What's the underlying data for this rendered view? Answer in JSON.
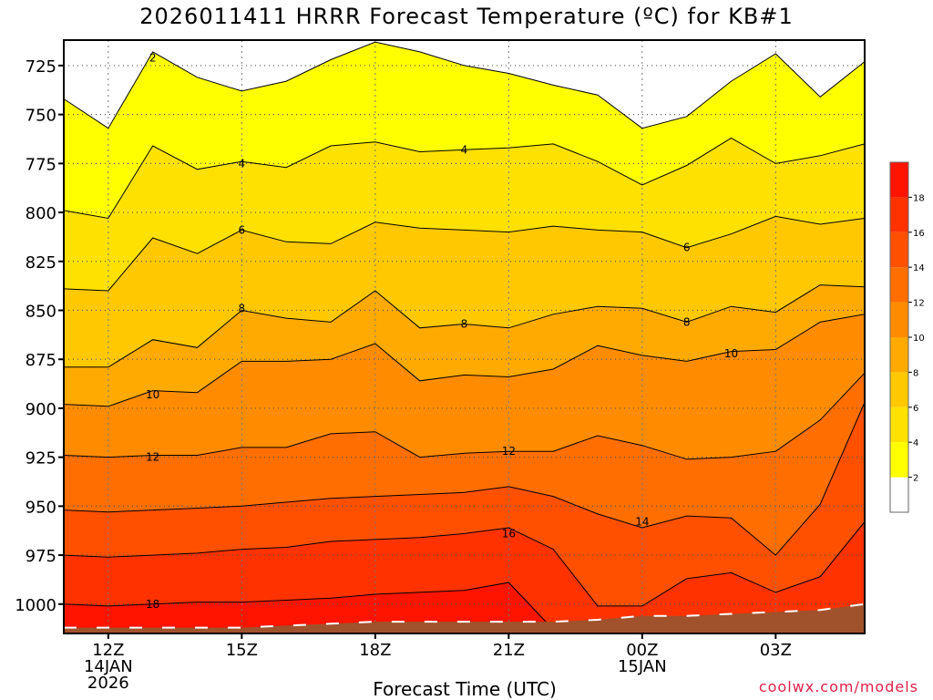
{
  "title": "2026011411 HRRR Forecast Temperature (ºC) for KB#1",
  "credit": "coolwx.com/models",
  "chart_data": {
    "type": "heatmap",
    "title": "2026011411 HRRR Forecast Temperature (ºC) for KB#1",
    "xlabel": "Forecast Time (UTC)",
    "ylabel": "",
    "x_hours": [
      11,
      12,
      13,
      14,
      15,
      16,
      17,
      18,
      19,
      20,
      21,
      22,
      23,
      24,
      25,
      26,
      27,
      28,
      29
    ],
    "xlim": [
      11,
      29
    ],
    "ylim": [
      1015,
      712
    ],
    "y_ticks": [
      725,
      750,
      775,
      800,
      825,
      850,
      875,
      900,
      925,
      950,
      975,
      1000
    ],
    "x_ticks": [
      {
        "hour": 12,
        "label": "12Z",
        "sub": [
          "14JAN",
          "2026"
        ]
      },
      {
        "hour": 15,
        "label": "15Z",
        "sub": []
      },
      {
        "hour": 18,
        "label": "18Z",
        "sub": []
      },
      {
        "hour": 21,
        "label": "21Z",
        "sub": []
      },
      {
        "hour": 24,
        "label": "00Z",
        "sub": [
          "15JAN"
        ]
      },
      {
        "hour": 27,
        "label": "03Z",
        "sub": []
      }
    ],
    "contours": [
      {
        "level": 2,
        "p": [
          742,
          757,
          718,
          731,
          738,
          733,
          722,
          713,
          718,
          725,
          729,
          735,
          740,
          757,
          751,
          733,
          719,
          741,
          723
        ]
      },
      {
        "level": 4,
        "p": [
          799,
          803,
          766,
          778,
          774,
          777,
          766,
          764,
          769,
          768,
          767,
          765,
          774,
          786,
          776,
          762,
          775,
          771,
          765
        ]
      },
      {
        "level": 6,
        "p": [
          839,
          840,
          813,
          821,
          809,
          815,
          816,
          805,
          808,
          809,
          810,
          807,
          809,
          810,
          818,
          811,
          802,
          806,
          803
        ]
      },
      {
        "level": 8,
        "p": [
          879,
          879,
          865,
          869,
          850,
          854,
          856,
          840,
          859,
          857,
          859,
          852,
          848,
          849,
          856,
          848,
          851,
          837,
          838
        ]
      },
      {
        "level": 10,
        "p": [
          898,
          899,
          891,
          892,
          876,
          876,
          875,
          867,
          886,
          883,
          884,
          880,
          868,
          873,
          876,
          871,
          870,
          856,
          852
        ]
      },
      {
        "level": 12,
        "p": [
          924,
          925,
          924,
          924,
          920,
          920,
          913,
          912,
          925,
          923,
          922,
          922,
          914,
          919,
          926,
          925,
          922,
          906,
          882
        ]
      },
      {
        "level": 14,
        "p": [
          952,
          953,
          952,
          951,
          950,
          948,
          946,
          945,
          944,
          943,
          940,
          945,
          954,
          961,
          955,
          956,
          975,
          949,
          897
        ]
      },
      {
        "level": 16,
        "p": [
          975,
          976,
          975,
          974,
          972,
          971,
          968,
          967,
          966,
          964,
          961,
          972,
          1001,
          1001,
          987,
          984,
          994,
          986,
          958
        ]
      },
      {
        "level": 18,
        "p": [
          1000,
          1001,
          1000,
          999,
          999,
          998,
          997,
          995,
          994,
          993,
          989,
          1013,
          1013,
          1013,
          1011,
          1013,
          1013,
          1012,
          1000
        ]
      }
    ],
    "contour_labels": [
      {
        "level": 2,
        "hour": 13.0,
        "p": 721
      },
      {
        "level": 4,
        "hour": 15.0,
        "p": 775
      },
      {
        "level": 4,
        "hour": 20.0,
        "p": 768
      },
      {
        "level": 6,
        "hour": 15.0,
        "p": 809
      },
      {
        "level": 6,
        "hour": 25.0,
        "p": 818
      },
      {
        "level": 8,
        "hour": 15.0,
        "p": 849
      },
      {
        "level": 8,
        "hour": 20.0,
        "p": 857
      },
      {
        "level": 8,
        "hour": 25.0,
        "p": 856
      },
      {
        "level": 10,
        "hour": 13.0,
        "p": 893
      },
      {
        "level": 10,
        "hour": 26.0,
        "p": 872
      },
      {
        "level": 12,
        "hour": 13.0,
        "p": 925
      },
      {
        "level": 12,
        "hour": 21.0,
        "p": 922
      },
      {
        "level": 14,
        "hour": 24.0,
        "p": 958
      },
      {
        "level": 16,
        "hour": 21.0,
        "p": 964
      },
      {
        "level": 18,
        "hour": 13.0,
        "p": 1000
      }
    ],
    "surface_p": [
      1012,
      1012,
      1012,
      1012,
      1012,
      1011,
      1010,
      1009,
      1009,
      1009,
      1009,
      1009,
      1008,
      1006,
      1006,
      1005,
      1004,
      1003,
      1000
    ],
    "fill_colors": {
      "below_2": "#ffffff",
      "2_4": "#ffff00",
      "4_6": "#ffe100",
      "6_8": "#ffc800",
      "8_10": "#ffaa00",
      "10_12": "#ff8c00",
      "12_14": "#ff6e00",
      "14_16": "#ff5000",
      "16_18": "#ff3200",
      "above_18": "#ff1400"
    },
    "colorbar": {
      "ticks": [
        "2",
        "4",
        "6",
        "8",
        "10",
        "12",
        "14",
        "16",
        "18"
      ],
      "colors": [
        "#ffffff",
        "#ffff00",
        "#ffe100",
        "#ffc800",
        "#ffaa00",
        "#ff8c00",
        "#ff6e00",
        "#ff5000",
        "#ff3200",
        "#ff1400"
      ]
    },
    "ground_color": "#a0522d",
    "grid": true
  }
}
